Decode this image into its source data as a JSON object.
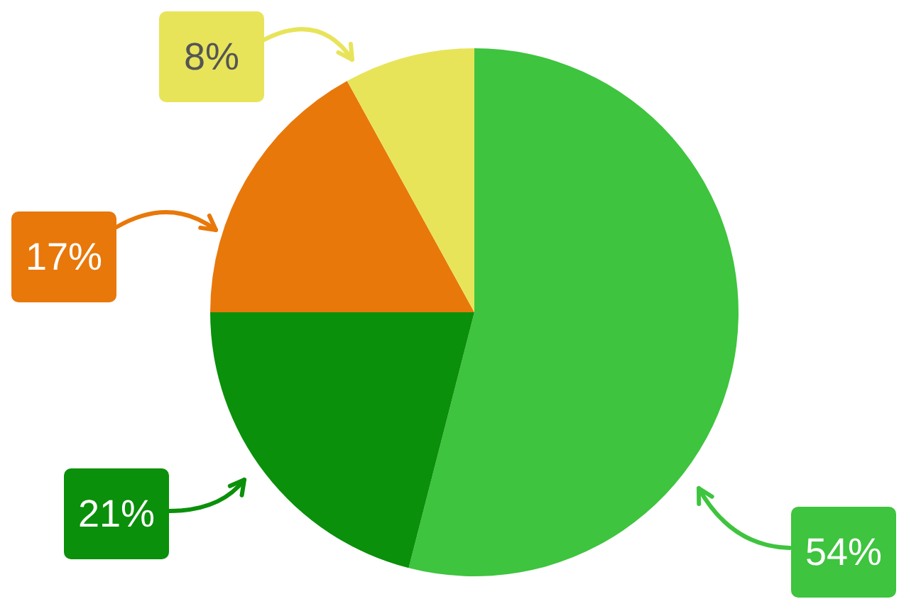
{
  "chart_data": {
    "type": "pie",
    "categories": [
      null,
      null,
      null,
      null
    ],
    "values": [
      54,
      21,
      17,
      8
    ],
    "colors": [
      "#3ec43e",
      "#0a900a",
      "#e8780a",
      "#e8e45a"
    ],
    "value_labels": [
      "54%",
      "21%",
      "17%",
      "8%"
    ]
  }
}
